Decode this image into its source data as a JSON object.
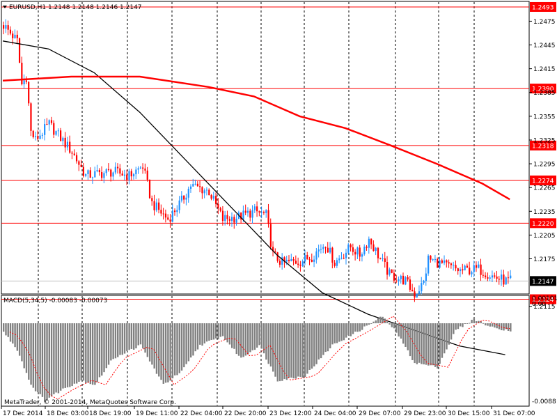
{
  "chart_data": [
    {
      "type": "candlestick",
      "title": "EURUSD,H1 1.2148 1.2148 1.2146 1.2147",
      "symbol": "EURUSD",
      "timeframe": "H1",
      "ohlc_last": [
        1.2148,
        1.2148,
        1.2146,
        1.2147
      ],
      "ylim": [
        1.2113,
        1.25
      ],
      "yticks": [
        1.2475,
        1.2445,
        1.2415,
        1.2385,
        1.2355,
        1.2325,
        1.2295,
        1.2265,
        1.2235,
        1.2205,
        1.2175,
        1.2115
      ],
      "x_ticks": [
        "17 Dec 2014",
        "18 Dec 03:00",
        "18 Dec 19:00",
        "19 Dec 11:00",
        "22 Dec 04:00",
        "22 Dec 20:00",
        "23 Dec 12:00",
        "24 Dec 04:00",
        "29 Dec 07:00",
        "29 Dec 23:00",
        "30 Dec 15:00",
        "31 Dec 07:00"
      ],
      "price_levels": [
        1.2493,
        1.239,
        1.2318,
        1.2274,
        1.222,
        1.2124
      ],
      "current_price": 1.2147,
      "close_path": [
        {
          "bar": 0,
          "price": 1.247
        },
        {
          "bar": 6,
          "price": 1.245
        },
        {
          "bar": 8,
          "price": 1.2395
        },
        {
          "bar": 10,
          "price": 1.2405
        },
        {
          "bar": 12,
          "price": 1.2335
        },
        {
          "bar": 14,
          "price": 1.2325
        },
        {
          "bar": 20,
          "price": 1.2345
        },
        {
          "bar": 30,
          "price": 1.231
        },
        {
          "bar": 36,
          "price": 1.228
        },
        {
          "bar": 48,
          "price": 1.2285
        },
        {
          "bar": 55,
          "price": 1.228
        },
        {
          "bar": 61,
          "price": 1.2292
        },
        {
          "bar": 65,
          "price": 1.2245
        },
        {
          "bar": 72,
          "price": 1.2225
        },
        {
          "bar": 78,
          "price": 1.2248
        },
        {
          "bar": 82,
          "price": 1.2268
        },
        {
          "bar": 90,
          "price": 1.226
        },
        {
          "bar": 96,
          "price": 1.2225
        },
        {
          "bar": 103,
          "price": 1.2228
        },
        {
          "bar": 110,
          "price": 1.2235
        },
        {
          "bar": 115,
          "price": 1.223
        },
        {
          "bar": 118,
          "price": 1.218
        },
        {
          "bar": 122,
          "price": 1.217
        },
        {
          "bar": 130,
          "price": 1.2172
        },
        {
          "bar": 135,
          "price": 1.2178
        },
        {
          "bar": 141,
          "price": 1.2195
        },
        {
          "bar": 145,
          "price": 1.217
        },
        {
          "bar": 152,
          "price": 1.219
        },
        {
          "bar": 156,
          "price": 1.218
        },
        {
          "bar": 160,
          "price": 1.22
        },
        {
          "bar": 164,
          "price": 1.218
        },
        {
          "bar": 169,
          "price": 1.2155
        },
        {
          "bar": 176,
          "price": 1.2147
        },
        {
          "bar": 180,
          "price": 1.213
        },
        {
          "bar": 184,
          "price": 1.2145
        },
        {
          "bar": 186,
          "price": 1.2175
        },
        {
          "bar": 192,
          "price": 1.2168
        },
        {
          "bar": 200,
          "price": 1.216
        },
        {
          "bar": 208,
          "price": 1.2162
        },
        {
          "bar": 215,
          "price": 1.2152
        },
        {
          "bar": 220,
          "price": 1.2147
        }
      ],
      "moving_averages": [
        {
          "color": "#000000",
          "points": [
            {
              "bar": 0,
              "price": 1.245
            },
            {
              "bar": 20,
              "price": 1.244
            },
            {
              "bar": 40,
              "price": 1.241
            },
            {
              "bar": 60,
              "price": 1.236
            },
            {
              "bar": 80,
              "price": 1.23
            },
            {
              "bar": 100,
              "price": 1.224
            },
            {
              "bar": 120,
              "price": 1.218
            },
            {
              "bar": 140,
              "price": 1.2132
            },
            {
              "bar": 160,
              "price": 1.2105
            },
            {
              "bar": 180,
              "price": 1.2085
            },
            {
              "bar": 200,
              "price": 1.2065
            },
            {
              "bar": 220,
              "price": 1.2054
            }
          ]
        },
        {
          "color": "#ff0000",
          "points": [
            {
              "bar": 0,
              "price": 1.24
            },
            {
              "bar": 30,
              "price": 1.2405
            },
            {
              "bar": 60,
              "price": 1.2405
            },
            {
              "bar": 90,
              "price": 1.2392
            },
            {
              "bar": 110,
              "price": 1.238
            },
            {
              "bar": 130,
              "price": 1.2355
            },
            {
              "bar": 150,
              "price": 1.234
            },
            {
              "bar": 170,
              "price": 1.2318
            },
            {
              "bar": 190,
              "price": 1.2295
            },
            {
              "bar": 210,
              "price": 1.227
            },
            {
              "bar": 222,
              "price": 1.225
            }
          ]
        }
      ],
      "macd": {
        "label": "MACD(5,34,5) -0.00083 -0.00073",
        "ylim": [
          -0.009,
          0.00101
        ],
        "yticks_top": [
          "0.00101",
          "0.00"
        ],
        "ytick_bottom": "-0.0088",
        "hist_path": [
          {
            "bar": 0,
            "v": -0.001
          },
          {
            "bar": 6,
            "v": -0.003
          },
          {
            "bar": 12,
            "v": -0.007
          },
          {
            "bar": 18,
            "v": -0.0088
          },
          {
            "bar": 26,
            "v": -0.0075
          },
          {
            "bar": 34,
            "v": -0.0065
          },
          {
            "bar": 40,
            "v": -0.007
          },
          {
            "bar": 48,
            "v": -0.004
          },
          {
            "bar": 60,
            "v": -0.0025
          },
          {
            "bar": 70,
            "v": -0.007
          },
          {
            "bar": 78,
            "v": -0.0055
          },
          {
            "bar": 86,
            "v": -0.0025
          },
          {
            "bar": 96,
            "v": -0.0015
          },
          {
            "bar": 104,
            "v": -0.004
          },
          {
            "bar": 112,
            "v": -0.0025
          },
          {
            "bar": 120,
            "v": -0.0065
          },
          {
            "bar": 132,
            "v": -0.006
          },
          {
            "bar": 144,
            "v": -0.0025
          },
          {
            "bar": 156,
            "v": -0.0008
          },
          {
            "bar": 166,
            "v": 0.0008
          },
          {
            "bar": 172,
            "v": -0.001
          },
          {
            "bar": 180,
            "v": -0.0045
          },
          {
            "bar": 190,
            "v": -0.005
          },
          {
            "bar": 198,
            "v": -0.0008
          },
          {
            "bar": 206,
            "v": 0.0005
          },
          {
            "bar": 214,
            "v": -0.0005
          },
          {
            "bar": 222,
            "v": -0.0008
          }
        ]
      }
    }
  ],
  "footer": {
    "copyright": "MetaTrader, © 2001-2014, MetaQuotes Software Corp."
  },
  "colors": {
    "bull": "#1e90ff",
    "bear": "#ff0000",
    "levels": "#ff0000",
    "grid": "#000000",
    "histogram": "#808080",
    "signal": "#ff0000"
  }
}
